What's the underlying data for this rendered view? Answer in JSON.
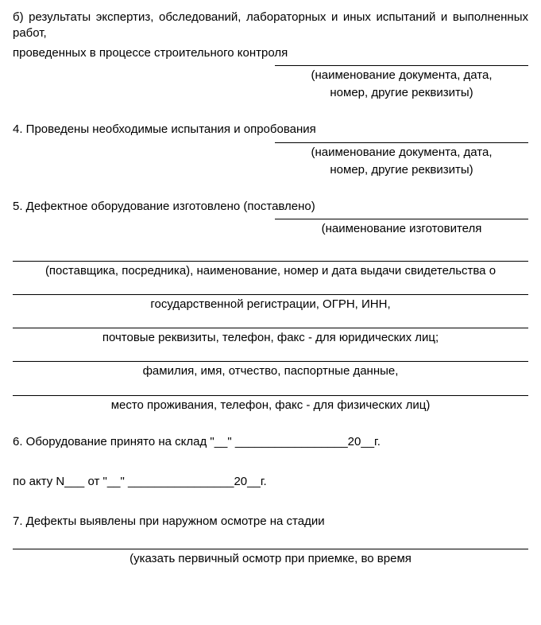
{
  "intro_b": "б) результаты экспертиз, обследований, лабораторных и иных испытаний и выполненных работ,",
  "intro_b2": "проведенных в процессе строительного контроля",
  "hint_doc1": "(наименование документа, дата,",
  "hint_doc2": "номер, другие реквизиты)",
  "s4": "4. Проведены необходимые испытания и опробования",
  "s5": "5. Дефектное оборудование изготовлено (поставлено)",
  "hint_mfr": "(наименование изготовителя",
  "line_supplier": "(поставщика, посредника), наименование, номер и дата выдачи свидетельства о",
  "line_gosreg": "государственной регистрации, ОГРН, ИНН,",
  "line_post": "почтовые реквизиты, телефон, факс - для юридических лиц;",
  "line_fio": "фамилия, имя, отчество, паспортные данные,",
  "line_addr": "место проживания, телефон, факс - для физических лиц)",
  "s6": "6. Оборудование принято на склад \"__\" _________________20__г.",
  "s6_akt": "по акту N___  от \"__\" ________________20__г.",
  "s7": "7. Дефекты выявлены при наружном осмотре на стадии",
  "hint_defects": "(указать первичный осмотр при приемке, во время",
  "colors": {
    "text": "#000000",
    "background": "#ffffff",
    "rule": "#000000"
  },
  "fontsize_pt": 11
}
